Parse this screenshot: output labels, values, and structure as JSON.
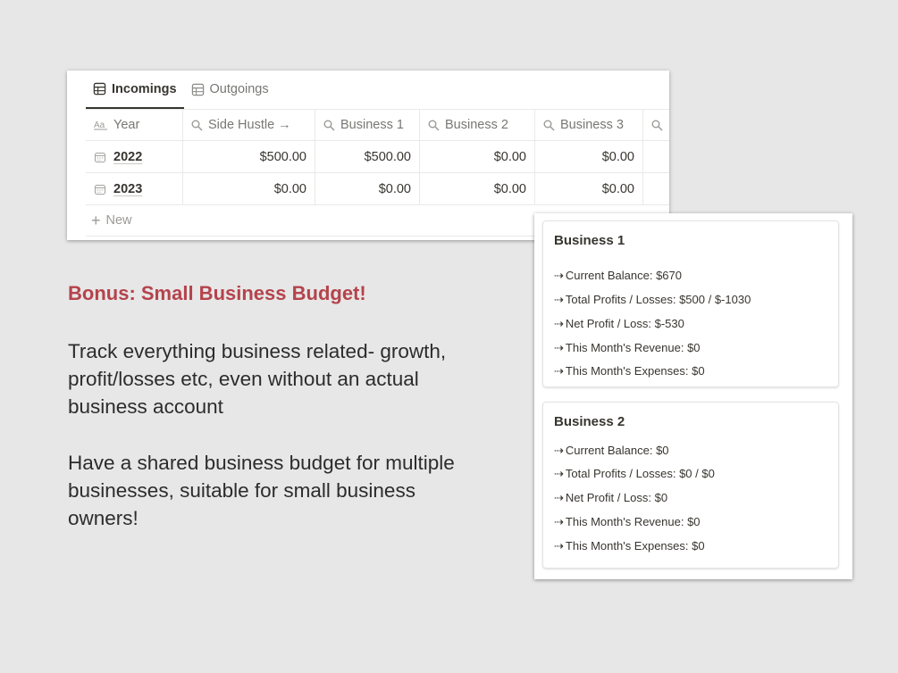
{
  "tabs": [
    {
      "label": "Incomings",
      "active": true
    },
    {
      "label": "Outgoings",
      "active": false
    }
  ],
  "table": {
    "headers": [
      "Year",
      "Side Hustle →",
      "Business 1",
      "Business 2",
      "Business 3"
    ],
    "rows": [
      {
        "year": "2022",
        "values": [
          "$500.00",
          "$500.00",
          "$0.00",
          "$0.00"
        ]
      },
      {
        "year": "2023",
        "values": [
          "$0.00",
          "$0.00",
          "$0.00",
          "$0.00"
        ]
      }
    ],
    "new_label": "New"
  },
  "text": {
    "bonus": "Bonus: Small Business Budget!",
    "para1": "Track everything business related- growth, profit/losses etc, even without an actual business account",
    "para2": "Have a shared business budget for multiple businesses, suitable for small business owners!"
  },
  "cards": [
    {
      "title": "Business 1",
      "lines": [
        "Current Balance: $670",
        "Total Profits / Losses: $500 / $-1030",
        "Net Profit / Loss: $-530",
        "This Month's Revenue: $0",
        "This Month's Expenses: $0"
      ]
    },
    {
      "title": "Business 2",
      "lines": [
        "Current Balance: $0",
        "Total Profits / Losses: $0 / $0",
        "Net Profit / Loss: $0",
        "This Month's Revenue: $0",
        "This Month's Expenses: $0"
      ]
    }
  ],
  "arrow_glyph": "⇢",
  "colors": {
    "accent": "#b5434c",
    "background": "#e7e7e7",
    "text": "#37352f",
    "muted": "#787774"
  }
}
